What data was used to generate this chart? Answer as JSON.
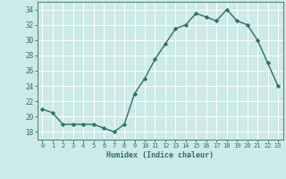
{
  "x": [
    0,
    1,
    2,
    3,
    4,
    5,
    6,
    7,
    8,
    9,
    10,
    11,
    12,
    13,
    14,
    15,
    16,
    17,
    18,
    19,
    20,
    21,
    22,
    23
  ],
  "y": [
    21.0,
    20.5,
    19.0,
    19.0,
    19.0,
    19.0,
    18.5,
    18.0,
    19.0,
    23.0,
    25.0,
    27.5,
    29.5,
    31.5,
    32.0,
    33.5,
    33.0,
    32.5,
    34.0,
    32.5,
    32.0,
    30.0,
    27.0,
    24.0
  ],
  "line_color": "#2d7068",
  "marker": "D",
  "marker_size": 2.2,
  "bg_color": "#cceae7",
  "grid_color": "#ffffff",
  "xlabel": "Humidex (Indice chaleur)",
  "xlim": [
    -0.5,
    23.5
  ],
  "ylim": [
    17,
    35
  ],
  "yticks": [
    18,
    20,
    22,
    24,
    26,
    28,
    30,
    32,
    34
  ],
  "xticks": [
    0,
    1,
    2,
    3,
    4,
    5,
    6,
    7,
    8,
    9,
    10,
    11,
    12,
    13,
    14,
    15,
    16,
    17,
    18,
    19,
    20,
    21,
    22,
    23
  ],
  "tick_color": "#2d7068",
  "label_color": "#2d7068",
  "tick_fontsize": 5.0,
  "xlabel_fontsize": 6.0
}
